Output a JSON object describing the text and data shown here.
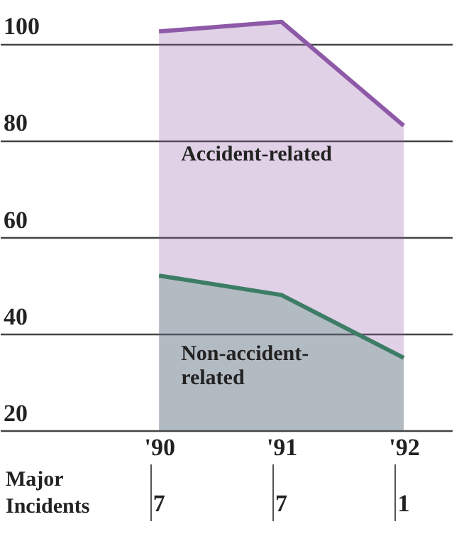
{
  "chart_data": {
    "type": "area",
    "x": [
      1990,
      1991,
      1992
    ],
    "xlim": [
      1988.7,
      1992.4
    ],
    "xticks": [
      {
        "value": 1990,
        "label": "'90"
      },
      {
        "value": 1991,
        "label": "'91"
      },
      {
        "value": 1992,
        "label": "'92"
      }
    ],
    "ylim": [
      20,
      109
    ],
    "yticks": [
      20,
      40,
      60,
      80,
      100
    ],
    "grid": "y",
    "series": [
      {
        "name": "Accident-related",
        "color": "#8e5aa8",
        "values": [
          102.5,
          104.5,
          83
        ]
      },
      {
        "name": "Non-accident-related",
        "color": "#3d7d66",
        "values": [
          52,
          48,
          35
        ]
      }
    ],
    "annotations": [
      "Major Incidents",
      "7",
      "7",
      "1"
    ]
  }
}
